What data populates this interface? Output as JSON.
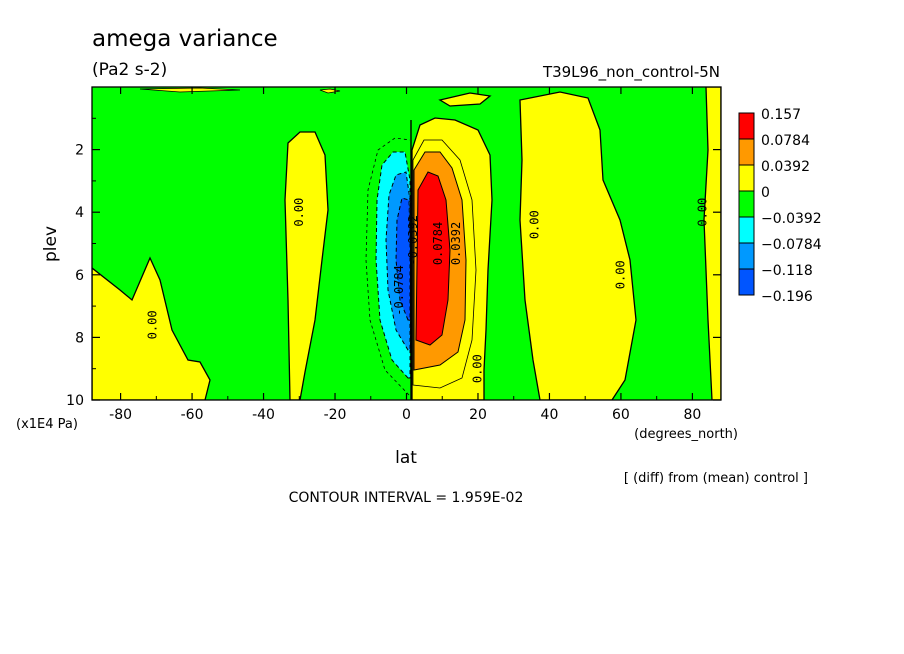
{
  "chart_data": {
    "type": "heatmap",
    "title": "amega variance",
    "units": "(Pa2 s-2)",
    "run_label": "T39L96_non_control-5N",
    "xlabel": "lat",
    "x_units": "(degrees_north)",
    "ylabel": "plev",
    "y_units": "(x1E4 Pa)",
    "xlim": [
      -88,
      88
    ],
    "ylim": [
      10,
      0
    ],
    "x_ticks": [
      "-80",
      "-60",
      "-40",
      "-20",
      "0",
      "20",
      "40",
      "60",
      "80"
    ],
    "y_ticks": [
      "2",
      "4",
      "6",
      "8",
      "10"
    ],
    "contour_interval": "CONTOUR INTERVAL = 1.959E-02",
    "note": "[ (diff) from (mean) control ]",
    "legend": {
      "position": "right",
      "levels": [
        {
          "label": "0.157",
          "color": "#ff0000"
        },
        {
          "label": "0.0784",
          "color": "#ff9900"
        },
        {
          "label": "0.0392",
          "color": "#ffff00"
        },
        {
          "label": "0",
          "color": "#00ff00"
        },
        {
          "label": "−0.0392",
          "color": "#00ffff"
        },
        {
          "label": "−0.0784",
          "color": "#0099ff"
        },
        {
          "label": "−0.118",
          "color": "#0055ff"
        },
        {
          "label": "−0.196",
          "color": null
        }
      ]
    },
    "contour_labels": [
      {
        "text": "0.00",
        "lat": -70,
        "plev": 7.6
      },
      {
        "text": "0.00",
        "lat": -29,
        "plev": 4.0
      },
      {
        "text": "0.00",
        "lat": 37,
        "plev": 4.4
      },
      {
        "text": "0.00",
        "lat": 61,
        "plev": 6.0
      },
      {
        "text": "0.00",
        "lat": 84,
        "plev": 4.0
      },
      {
        "text": "0.00",
        "lat": 21,
        "plev": 9.0
      },
      {
        "text": "0.0784",
        "lat": 10,
        "plev": 5.0
      },
      {
        "text": "0.0392",
        "lat": 15,
        "plev": 5.0
      },
      {
        "text": "-0.0784",
        "lat": -1,
        "plev": 6.5
      },
      {
        "text": "-0.0392",
        "lat": 3,
        "plev": 4.9
      }
    ]
  }
}
